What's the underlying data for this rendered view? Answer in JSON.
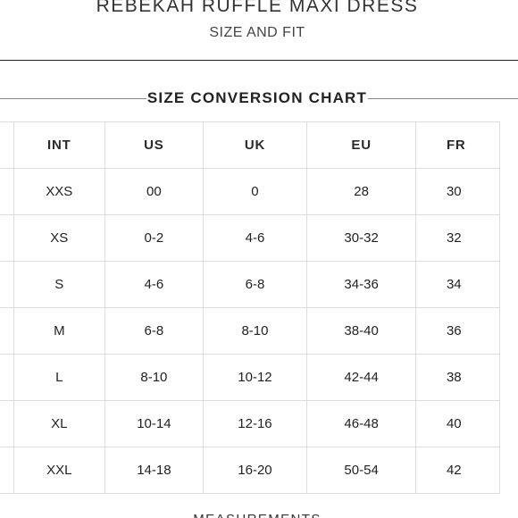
{
  "product": {
    "title": "REBEKAH RUFFLE MAXI DRESS",
    "subtitle": "SIZE AND FIT"
  },
  "size_chart": {
    "heading": "SIZE CONVERSION CHART",
    "columns": [
      "",
      "INT",
      "US",
      "UK",
      "EU",
      "FR"
    ],
    "rows": [
      {
        "blank": "",
        "INT": "XXS",
        "US": "00",
        "UK": "0",
        "EU": "28",
        "FR": "30"
      },
      {
        "blank": "",
        "INT": "XS",
        "US": "0-2",
        "UK": "4-6",
        "EU": "30-32",
        "FR": "32"
      },
      {
        "blank": "",
        "INT": "S",
        "US": "4-6",
        "UK": "6-8",
        "EU": "34-36",
        "FR": "34"
      },
      {
        "blank": "",
        "INT": "M",
        "US": "6-8",
        "UK": "8-10",
        "EU": "38-40",
        "FR": "36"
      },
      {
        "blank": "",
        "INT": "L",
        "US": "8-10",
        "UK": "10-12",
        "EU": "42-44",
        "FR": "38"
      },
      {
        "blank": "",
        "INT": "XL",
        "US": "10-14",
        "UK": "12-16",
        "EU": "46-48",
        "FR": "40"
      },
      {
        "blank": "",
        "INT": "XXL",
        "US": "14-18",
        "UK": "16-20",
        "EU": "50-54",
        "FR": "42"
      }
    ]
  },
  "measurements": {
    "heading": "MEASUREMENTS"
  },
  "colors": {
    "text": "#222222",
    "rule": "#222222",
    "table_border": "#dddddd",
    "background": "#ffffff"
  }
}
